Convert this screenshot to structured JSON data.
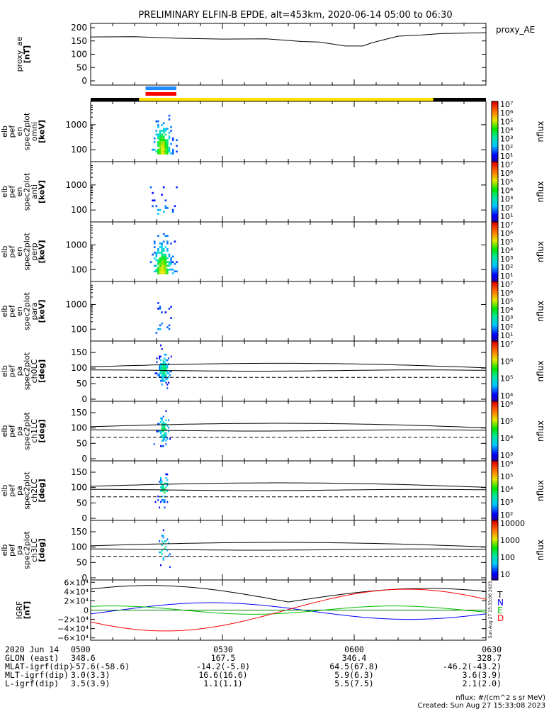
{
  "chart_data": {
    "type": "multi-panel spectrogram",
    "title": "PRELIMINARY ELFIN-B EPDE, alt=453km, 2020-06-14 05:00 to 06:30",
    "panels": [
      {
        "type": "line",
        "ylabel": [
          "proxy_ae",
          "[nT]"
        ],
        "legend": "proxy_AE",
        "ylim": [
          0,
          200
        ],
        "ticks": [
          "200",
          "150",
          "100",
          "50",
          "0"
        ],
        "tick_values": [
          200,
          150,
          100,
          50,
          0
        ],
        "x_min": [
          0,
          10,
          20,
          30,
          40,
          48,
          52,
          58,
          62,
          64,
          70,
          75,
          80,
          90
        ],
        "values": [
          165,
          166,
          160,
          157,
          158,
          148,
          146,
          131,
          131,
          143,
          168,
          172,
          178,
          181
        ]
      },
      {
        "type": "heatmap",
        "ylabel": [
          "elb",
          "pef",
          "en",
          "spec2plot",
          "omni",
          "[keV]"
        ],
        "ticks": [
          "1000",
          "100"
        ],
        "colorbar": [
          "10⁷",
          "10⁶",
          "10⁵",
          "10⁴",
          "10³",
          "10²",
          "10¹"
        ],
        "colorbar_label": "nflux"
      },
      {
        "type": "heatmap",
        "ylabel": [
          "elb",
          "pef",
          "en",
          "spec2plot",
          "anti",
          "[keV]"
        ],
        "ticks": [
          "1000",
          "100"
        ],
        "colorbar": [
          "10⁷",
          "10⁶",
          "10⁵",
          "10⁴",
          "10³",
          "10²",
          "10¹"
        ],
        "colorbar_label": "nflux"
      },
      {
        "type": "heatmap",
        "ylabel": [
          "elb",
          "pef",
          "en",
          "spec2plot",
          "perp",
          "[keV]"
        ],
        "ticks": [
          "1000",
          "100"
        ],
        "colorbar": [
          "10⁷",
          "10⁶",
          "10⁵",
          "10⁴",
          "10³",
          "10²",
          "10¹"
        ],
        "colorbar_label": "nflux"
      },
      {
        "type": "heatmap",
        "ylabel": [
          "elb",
          "pef",
          "en",
          "spec2plot",
          "para",
          "[keV]"
        ],
        "ticks": [
          "1000",
          "100"
        ],
        "colorbar": [
          "10⁷",
          "10⁶",
          "10⁵",
          "10⁴",
          "10³",
          "10²",
          "10¹"
        ],
        "colorbar_label": "nflux"
      },
      {
        "type": "heatmap",
        "ylabel": [
          "elb",
          "pef",
          "pa",
          "spec2plot",
          "ch0LC",
          "[deg]"
        ],
        "ticks": [
          "150",
          "100",
          "50",
          "0"
        ],
        "tick_values": [
          150,
          100,
          50,
          0
        ],
        "ylim": [
          0,
          180
        ],
        "colorbar": [
          "10⁷",
          "10⁶",
          "10⁵",
          "10⁴"
        ],
        "colorbar_label": "nflux"
      },
      {
        "type": "heatmap",
        "ylabel": [
          "elb",
          "pef",
          "pa",
          "spec2plot",
          "ch1LC",
          "[deg]"
        ],
        "ticks": [
          "150",
          "100",
          "50",
          "0"
        ],
        "tick_values": [
          150,
          100,
          50,
          0
        ],
        "ylim": [
          0,
          180
        ],
        "colorbar": [
          "10⁶",
          "10⁵",
          "10⁴",
          "10³"
        ],
        "colorbar_label": "nflux"
      },
      {
        "type": "heatmap",
        "ylabel": [
          "elb",
          "pef",
          "pa",
          "spec2plot",
          "ch2LC",
          "[deg]"
        ],
        "ticks": [
          "150",
          "100",
          "50",
          "0"
        ],
        "tick_values": [
          150,
          100,
          50,
          0
        ],
        "ylim": [
          0,
          180
        ],
        "colorbar": [
          "10⁶",
          "10⁵",
          "10⁴",
          "10³",
          "10²"
        ],
        "colorbar_label": "nflux"
      },
      {
        "type": "heatmap",
        "ylabel": [
          "elb",
          "pef",
          "pa",
          "spec2plot",
          "ch3LC",
          "[deg]"
        ],
        "ticks": [
          "150",
          "100",
          "50",
          "0"
        ],
        "tick_values": [
          150,
          100,
          50,
          0
        ],
        "ylim": [
          0,
          180
        ],
        "colorbar": [
          "10000",
          "1000",
          "100",
          "10"
        ],
        "colorbar_label": "nflux"
      },
      {
        "type": "line",
        "ylabel": [
          "IGRF",
          "[nT]"
        ],
        "ticks": [
          "6×10⁴",
          "4×10⁴",
          "2×10⁴",
          "0",
          "−2×10⁴",
          "−4×10⁴",
          "−6×10⁴"
        ],
        "tick_values": [
          60000,
          40000,
          20000,
          0,
          -20000,
          -40000,
          -60000
        ],
        "legend": [
          "T",
          "N",
          "E",
          "D"
        ],
        "legend_colors": [
          "#000000",
          "#0000ff",
          "#00c000",
          "#ff0000"
        ],
        "side_note": "Sun Aug 27 15:33:06 2023"
      }
    ],
    "x_axis": {
      "tick_labels": [
        "0500",
        "0530",
        "0600",
        "0630"
      ],
      "tick_minutes": [
        0,
        30,
        60,
        90
      ],
      "xlim_minutes": [
        0,
        90
      ]
    }
  },
  "footer": {
    "rows": [
      {
        "label": "2020 Jun 14",
        "values": [
          "0500",
          "0530",
          "0600",
          "0630"
        ]
      },
      {
        "label": "GLON (east)",
        "values": [
          "348.6",
          "167.5",
          "346.4",
          "328.7"
        ]
      },
      {
        "label": "MLAT-igrf(dip)",
        "values": [
          "-57.6(-58.6)",
          "-14.2(-5.0)",
          "64.5(67.8)",
          "-46.2(-43.2)"
        ]
      },
      {
        "label": "MLT-igrf(dip)",
        "values": [
          "3.0(3.3)",
          "16.6(16.6)",
          "5.9(6.3)",
          "3.6(3.9)"
        ]
      },
      {
        "label": "L-igrf(dip)",
        "values": [
          "3.5(3.9)",
          "1.1(1.1)",
          "5.5(7.5)",
          "2.1(2.0)"
        ]
      }
    ],
    "units_note": "nflux: #/(cm^2 s sr MeV)",
    "created": "Created: Sun Aug 27 15:33:08 2023"
  }
}
